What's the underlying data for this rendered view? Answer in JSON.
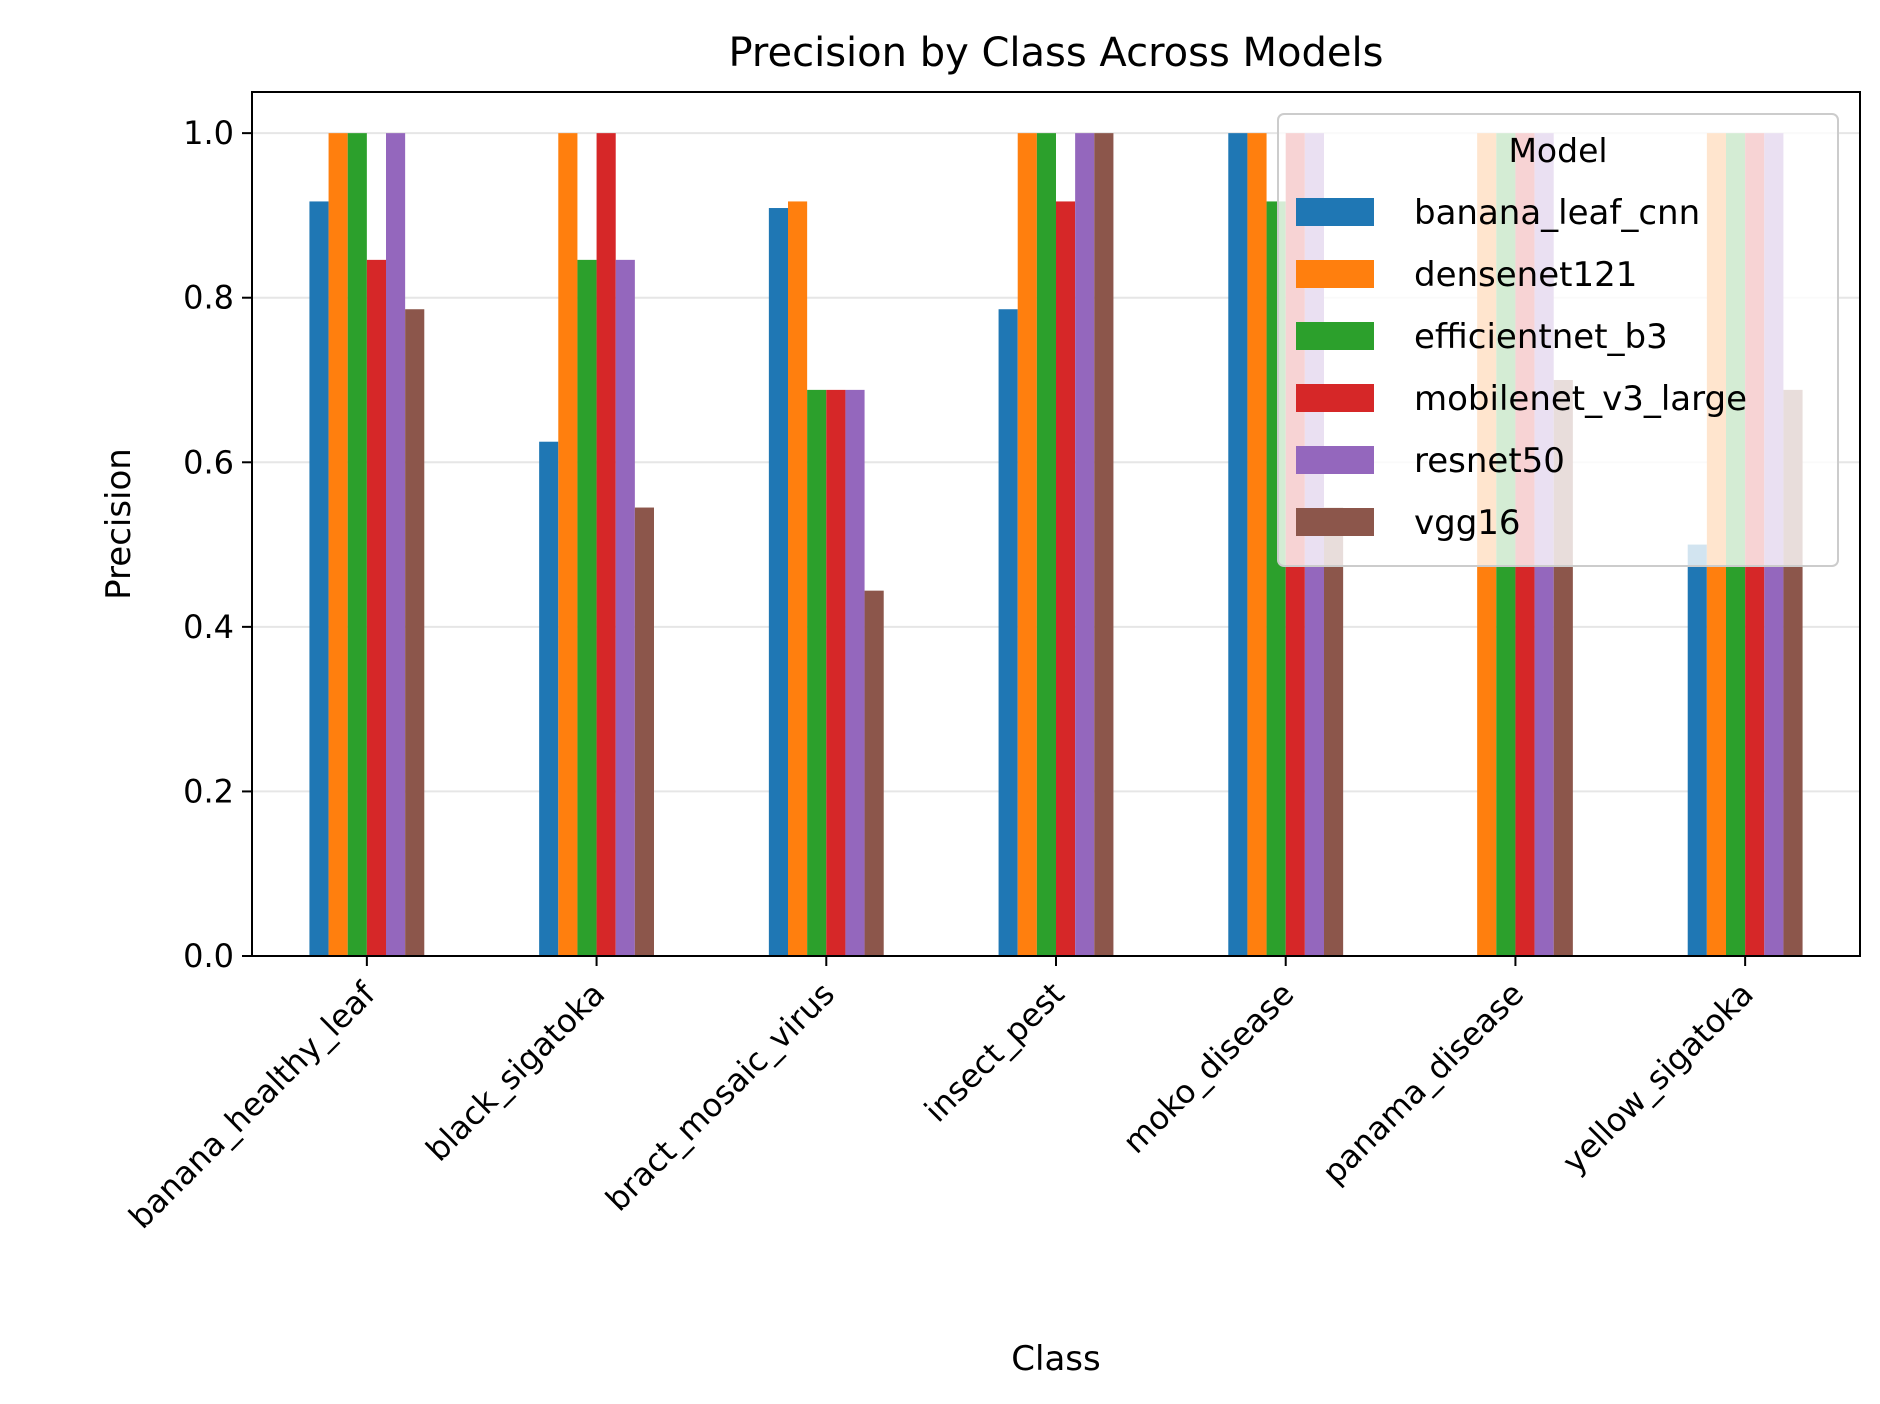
{
  "chart_data": {
    "type": "bar",
    "title": "Precision by Class Across Models",
    "xlabel": "Class",
    "ylabel": "Precision",
    "ylim": [
      0,
      1.05
    ],
    "yticks": [
      0.0,
      0.2,
      0.4,
      0.6,
      0.8,
      1.0
    ],
    "ytick_labels": [
      "0.0",
      "0.2",
      "0.4",
      "0.6",
      "0.8",
      "1.0"
    ],
    "grid": "horizontal",
    "legend": {
      "title": "Model",
      "position": "top-right"
    },
    "categories": [
      "banana_healthy_leaf",
      "black_sigatoka",
      "bract_mosaic_virus",
      "insect_pest",
      "moko_disease",
      "panama_disease",
      "yellow_sigatoka"
    ],
    "series": [
      {
        "name": "banana_leaf_cnn",
        "color": "#1f77b4",
        "values": [
          0.917,
          0.625,
          0.909,
          0.786,
          1.0,
          0.0,
          0.5
        ]
      },
      {
        "name": "densenet121",
        "color": "#ff7f0e",
        "values": [
          1.0,
          1.0,
          0.917,
          1.0,
          1.0,
          1.0,
          1.0
        ]
      },
      {
        "name": "efficientnet_b3",
        "color": "#2ca02c",
        "values": [
          1.0,
          0.846,
          0.688,
          1.0,
          0.917,
          1.0,
          1.0
        ]
      },
      {
        "name": "mobilenet_v3_large",
        "color": "#d62728",
        "values": [
          0.846,
          1.0,
          0.688,
          0.917,
          1.0,
          1.0,
          1.0
        ]
      },
      {
        "name": "resnet50",
        "color": "#9467bd",
        "values": [
          1.0,
          0.846,
          0.688,
          1.0,
          1.0,
          1.0,
          1.0
        ]
      },
      {
        "name": "vgg16",
        "color": "#8c564b",
        "values": [
          0.786,
          0.545,
          0.444,
          1.0,
          0.545,
          0.7,
          0.688
        ]
      }
    ]
  }
}
